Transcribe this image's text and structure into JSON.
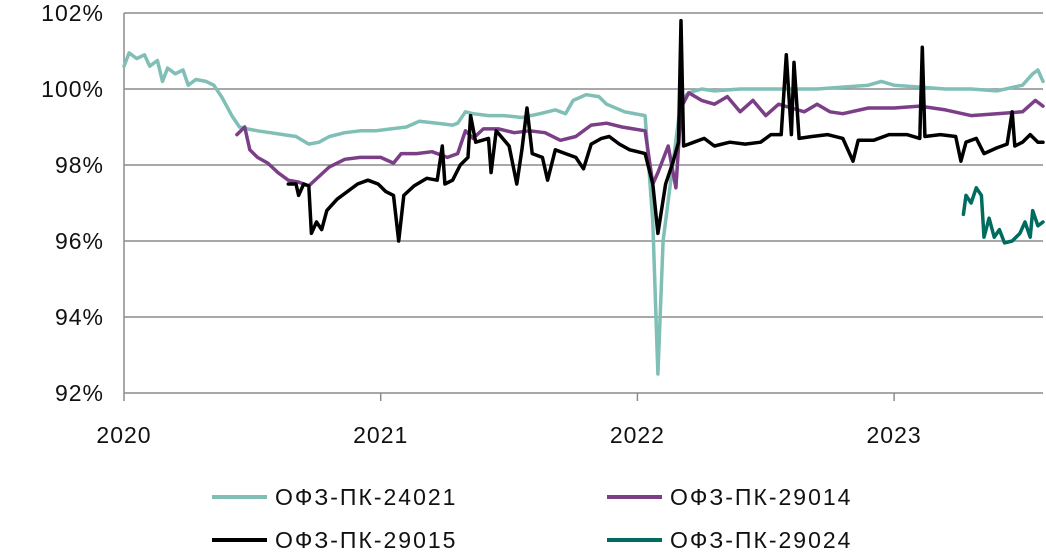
{
  "chart_data": {
    "type": "line",
    "title": "",
    "xlabel": "",
    "ylabel": "",
    "xlim": [
      2020.0,
      2023.58
    ],
    "ylim": [
      92,
      102
    ],
    "x_ticks": [
      2020,
      2021,
      2022,
      2023
    ],
    "x_tick_labels": [
      "2020",
      "2021",
      "2022",
      "2023"
    ],
    "y_ticks": [
      92,
      94,
      96,
      98,
      100,
      102
    ],
    "y_tick_labels": [
      "92%",
      "94%",
      "96%",
      "98%",
      "100%",
      "102%"
    ],
    "grid": "horizontal",
    "legend_position": "bottom",
    "series": [
      {
        "name": "ОФЗ-ПК-24021",
        "color": "#7fbfb5",
        "points": [
          [
            2020.0,
            100.6
          ],
          [
            2020.02,
            100.95
          ],
          [
            2020.05,
            100.8
          ],
          [
            2020.08,
            100.9
          ],
          [
            2020.1,
            100.6
          ],
          [
            2020.13,
            100.75
          ],
          [
            2020.15,
            100.2
          ],
          [
            2020.17,
            100.55
          ],
          [
            2020.2,
            100.4
          ],
          [
            2020.23,
            100.5
          ],
          [
            2020.25,
            100.1
          ],
          [
            2020.28,
            100.25
          ],
          [
            2020.32,
            100.2
          ],
          [
            2020.35,
            100.1
          ],
          [
            2020.38,
            99.8
          ],
          [
            2020.42,
            99.3
          ],
          [
            2020.45,
            99.0
          ],
          [
            2020.48,
            98.95
          ],
          [
            2020.52,
            98.9
          ],
          [
            2020.57,
            98.85
          ],
          [
            2020.62,
            98.8
          ],
          [
            2020.67,
            98.75
          ],
          [
            2020.72,
            98.55
          ],
          [
            2020.76,
            98.6
          ],
          [
            2020.8,
            98.75
          ],
          [
            2020.86,
            98.85
          ],
          [
            2020.92,
            98.9
          ],
          [
            2020.98,
            98.9
          ],
          [
            2021.04,
            98.95
          ],
          [
            2021.1,
            99.0
          ],
          [
            2021.15,
            99.15
          ],
          [
            2021.22,
            99.1
          ],
          [
            2021.28,
            99.05
          ],
          [
            2021.3,
            99.1
          ],
          [
            2021.33,
            99.4
          ],
          [
            2021.36,
            99.35
          ],
          [
            2021.42,
            99.3
          ],
          [
            2021.48,
            99.3
          ],
          [
            2021.55,
            99.25
          ],
          [
            2021.62,
            99.35
          ],
          [
            2021.68,
            99.45
          ],
          [
            2021.72,
            99.35
          ],
          [
            2021.75,
            99.7
          ],
          [
            2021.8,
            99.85
          ],
          [
            2021.85,
            99.8
          ],
          [
            2021.88,
            99.6
          ],
          [
            2021.95,
            99.4
          ],
          [
            2022.03,
            99.3
          ],
          [
            2022.06,
            96.5
          ],
          [
            2022.08,
            92.5
          ],
          [
            2022.1,
            96.0
          ],
          [
            2022.17,
            99.7
          ],
          [
            2022.2,
            99.9
          ],
          [
            2022.25,
            100.0
          ],
          [
            2022.3,
            99.95
          ],
          [
            2022.4,
            100.0
          ],
          [
            2022.5,
            100.0
          ],
          [
            2022.6,
            100.0
          ],
          [
            2022.7,
            100.0
          ],
          [
            2022.8,
            100.05
          ],
          [
            2022.9,
            100.1
          ],
          [
            2022.95,
            100.2
          ],
          [
            2023.0,
            100.1
          ],
          [
            2023.1,
            100.05
          ],
          [
            2023.2,
            100.0
          ],
          [
            2023.3,
            100.0
          ],
          [
            2023.4,
            99.95
          ],
          [
            2023.5,
            100.1
          ],
          [
            2023.54,
            100.4
          ],
          [
            2023.56,
            100.5
          ],
          [
            2023.58,
            100.2
          ]
        ]
      },
      {
        "name": "ОФЗ-ПК-29014",
        "color": "#7b3f87",
        "points": [
          [
            2020.44,
            98.8
          ],
          [
            2020.47,
            99.0
          ],
          [
            2020.49,
            98.4
          ],
          [
            2020.52,
            98.2
          ],
          [
            2020.56,
            98.05
          ],
          [
            2020.6,
            97.8
          ],
          [
            2020.64,
            97.6
          ],
          [
            2020.68,
            97.55
          ],
          [
            2020.72,
            97.45
          ],
          [
            2020.76,
            97.7
          ],
          [
            2020.8,
            97.95
          ],
          [
            2020.86,
            98.15
          ],
          [
            2020.92,
            98.2
          ],
          [
            2021.0,
            98.2
          ],
          [
            2021.05,
            98.05
          ],
          [
            2021.08,
            98.3
          ],
          [
            2021.14,
            98.3
          ],
          [
            2021.2,
            98.35
          ],
          [
            2021.26,
            98.2
          ],
          [
            2021.3,
            98.3
          ],
          [
            2021.33,
            98.9
          ],
          [
            2021.36,
            98.7
          ],
          [
            2021.4,
            98.95
          ],
          [
            2021.46,
            98.95
          ],
          [
            2021.52,
            98.85
          ],
          [
            2021.58,
            98.9
          ],
          [
            2021.64,
            98.85
          ],
          [
            2021.7,
            98.65
          ],
          [
            2021.76,
            98.75
          ],
          [
            2021.82,
            99.05
          ],
          [
            2021.88,
            99.1
          ],
          [
            2021.94,
            99.0
          ],
          [
            2022.03,
            98.9
          ],
          [
            2022.06,
            97.5
          ],
          [
            2022.08,
            97.8
          ],
          [
            2022.12,
            98.5
          ],
          [
            2022.15,
            97.4
          ],
          [
            2022.17,
            99.5
          ],
          [
            2022.2,
            99.9
          ],
          [
            2022.25,
            99.7
          ],
          [
            2022.3,
            99.6
          ],
          [
            2022.35,
            99.8
          ],
          [
            2022.4,
            99.4
          ],
          [
            2022.45,
            99.7
          ],
          [
            2022.5,
            99.3
          ],
          [
            2022.55,
            99.6
          ],
          [
            2022.6,
            99.5
          ],
          [
            2022.65,
            99.4
          ],
          [
            2022.7,
            99.6
          ],
          [
            2022.75,
            99.4
          ],
          [
            2022.8,
            99.35
          ],
          [
            2022.9,
            99.5
          ],
          [
            2023.0,
            99.5
          ],
          [
            2023.1,
            99.55
          ],
          [
            2023.2,
            99.45
          ],
          [
            2023.3,
            99.3
          ],
          [
            2023.4,
            99.35
          ],
          [
            2023.5,
            99.4
          ],
          [
            2023.55,
            99.7
          ],
          [
            2023.58,
            99.55
          ]
        ]
      },
      {
        "name": "ОФЗ-ПК-29015",
        "color": "#000000",
        "points": [
          [
            2020.64,
            97.5
          ],
          [
            2020.67,
            97.5
          ],
          [
            2020.68,
            97.2
          ],
          [
            2020.7,
            97.5
          ],
          [
            2020.72,
            97.45
          ],
          [
            2020.73,
            96.2
          ],
          [
            2020.75,
            96.5
          ],
          [
            2020.77,
            96.3
          ],
          [
            2020.79,
            96.8
          ],
          [
            2020.83,
            97.1
          ],
          [
            2020.87,
            97.3
          ],
          [
            2020.91,
            97.5
          ],
          [
            2020.95,
            97.6
          ],
          [
            2020.99,
            97.5
          ],
          [
            2021.02,
            97.3
          ],
          [
            2021.05,
            97.2
          ],
          [
            2021.07,
            96.0
          ],
          [
            2021.09,
            97.2
          ],
          [
            2021.13,
            97.45
          ],
          [
            2021.18,
            97.65
          ],
          [
            2021.22,
            97.6
          ],
          [
            2021.24,
            98.5
          ],
          [
            2021.25,
            97.5
          ],
          [
            2021.28,
            97.6
          ],
          [
            2021.31,
            98.0
          ],
          [
            2021.34,
            98.2
          ],
          [
            2021.35,
            99.3
          ],
          [
            2021.37,
            98.6
          ],
          [
            2021.42,
            98.7
          ],
          [
            2021.43,
            97.8
          ],
          [
            2021.45,
            98.9
          ],
          [
            2021.5,
            98.5
          ],
          [
            2021.53,
            97.5
          ],
          [
            2021.55,
            98.4
          ],
          [
            2021.57,
            99.5
          ],
          [
            2021.59,
            98.3
          ],
          [
            2021.63,
            98.2
          ],
          [
            2021.65,
            97.6
          ],
          [
            2021.68,
            98.4
          ],
          [
            2021.72,
            98.3
          ],
          [
            2021.76,
            98.2
          ],
          [
            2021.79,
            97.9
          ],
          [
            2021.82,
            98.55
          ],
          [
            2021.86,
            98.7
          ],
          [
            2021.89,
            98.75
          ],
          [
            2021.93,
            98.55
          ],
          [
            2021.97,
            98.4
          ],
          [
            2022.03,
            98.3
          ],
          [
            2022.06,
            97.5
          ],
          [
            2022.08,
            96.2
          ],
          [
            2022.11,
            97.5
          ],
          [
            2022.14,
            98.1
          ],
          [
            2022.16,
            98.6
          ],
          [
            2022.17,
            101.8
          ],
          [
            2022.18,
            98.5
          ],
          [
            2022.22,
            98.6
          ],
          [
            2022.26,
            98.7
          ],
          [
            2022.3,
            98.5
          ],
          [
            2022.36,
            98.6
          ],
          [
            2022.42,
            98.55
          ],
          [
            2022.48,
            98.6
          ],
          [
            2022.52,
            98.8
          ],
          [
            2022.56,
            98.8
          ],
          [
            2022.58,
            100.9
          ],
          [
            2022.6,
            98.8
          ],
          [
            2022.61,
            100.7
          ],
          [
            2022.63,
            98.7
          ],
          [
            2022.68,
            98.75
          ],
          [
            2022.74,
            98.8
          ],
          [
            2022.8,
            98.7
          ],
          [
            2022.84,
            98.1
          ],
          [
            2022.86,
            98.65
          ],
          [
            2022.92,
            98.65
          ],
          [
            2022.98,
            98.8
          ],
          [
            2023.05,
            98.8
          ],
          [
            2023.1,
            98.7
          ],
          [
            2023.11,
            101.1
          ],
          [
            2023.12,
            98.75
          ],
          [
            2023.18,
            98.8
          ],
          [
            2023.24,
            98.75
          ],
          [
            2023.26,
            98.1
          ],
          [
            2023.28,
            98.6
          ],
          [
            2023.32,
            98.7
          ],
          [
            2023.35,
            98.3
          ],
          [
            2023.4,
            98.45
          ],
          [
            2023.44,
            98.55
          ],
          [
            2023.46,
            99.4
          ],
          [
            2023.47,
            98.5
          ],
          [
            2023.5,
            98.6
          ],
          [
            2023.53,
            98.8
          ],
          [
            2023.56,
            98.6
          ],
          [
            2023.58,
            98.6
          ]
        ]
      },
      {
        "name": "ОФЗ-ПК-29024",
        "color": "#006b5f",
        "points": [
          [
            2023.27,
            96.7
          ],
          [
            2023.28,
            97.2
          ],
          [
            2023.3,
            97.0
          ],
          [
            2023.32,
            97.4
          ],
          [
            2023.34,
            97.2
          ],
          [
            2023.35,
            96.1
          ],
          [
            2023.37,
            96.6
          ],
          [
            2023.39,
            96.1
          ],
          [
            2023.41,
            96.3
          ],
          [
            2023.43,
            95.95
          ],
          [
            2023.46,
            96.0
          ],
          [
            2023.49,
            96.2
          ],
          [
            2023.51,
            96.5
          ],
          [
            2023.53,
            96.1
          ],
          [
            2023.54,
            96.8
          ],
          [
            2023.56,
            96.4
          ],
          [
            2023.58,
            96.5
          ]
        ]
      }
    ]
  }
}
